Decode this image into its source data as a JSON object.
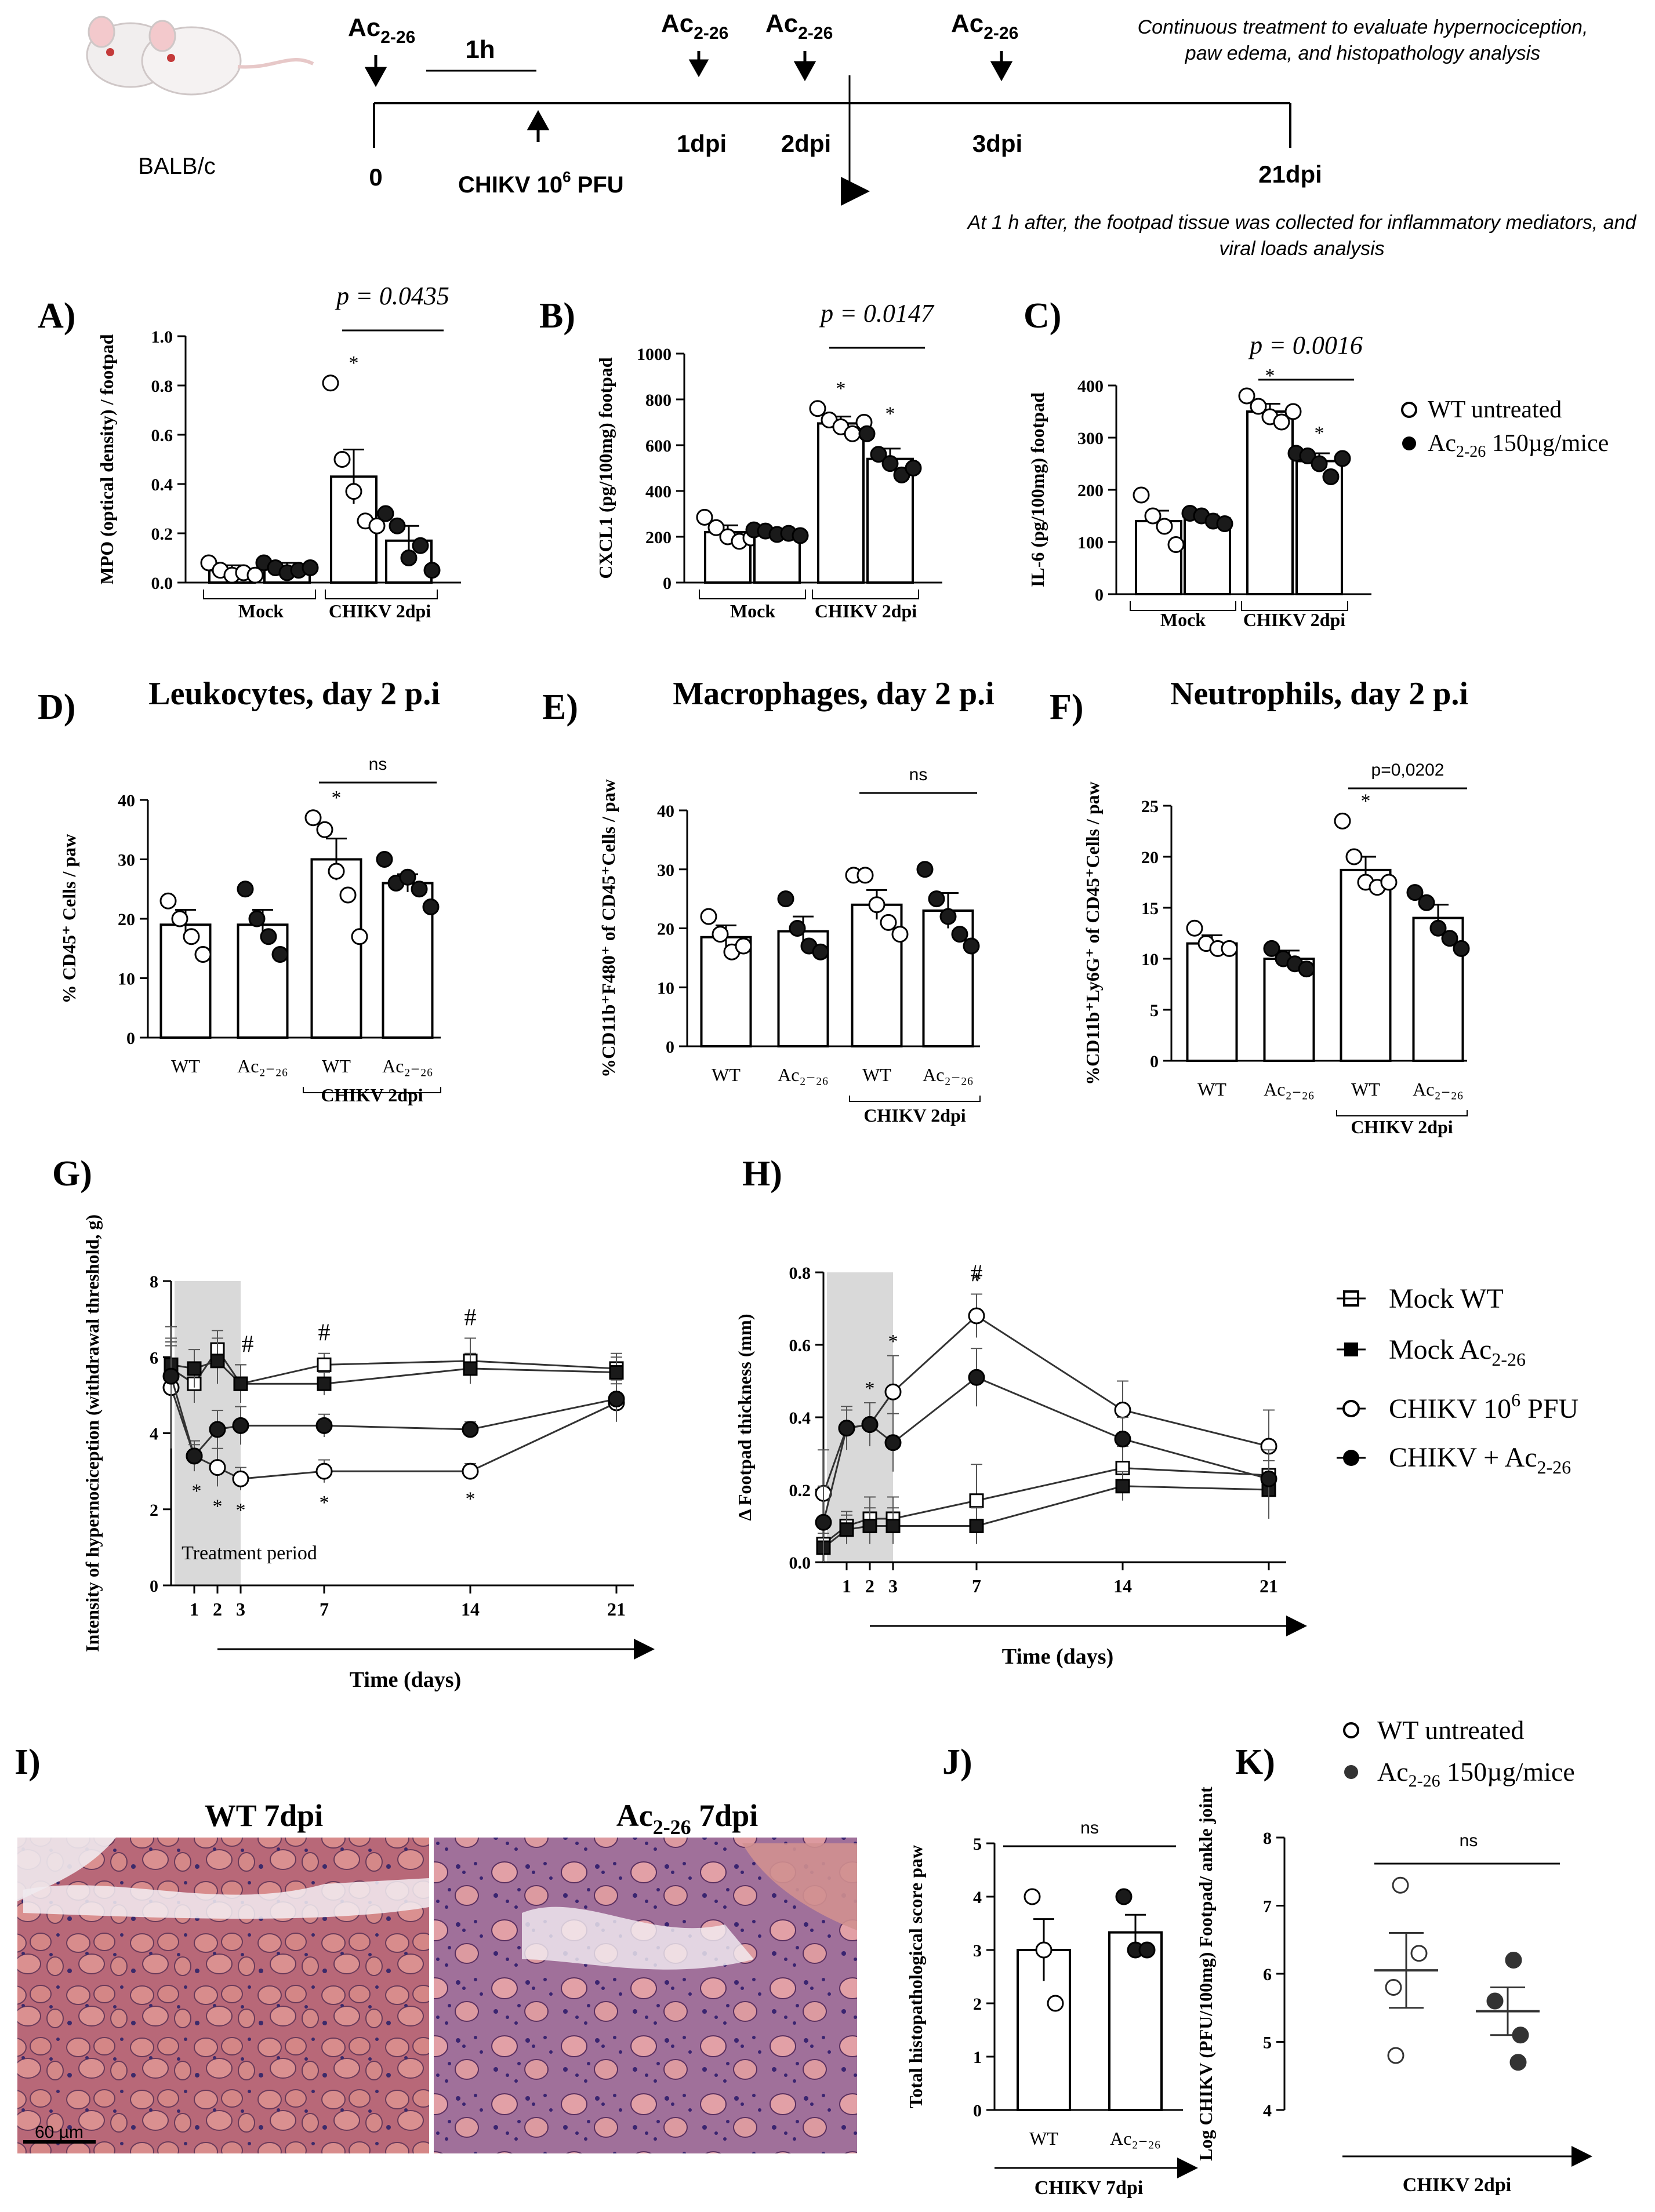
{
  "timeline": {
    "strain": "BALB/c",
    "ac": "Ac",
    "ac_sub": "2-26",
    "one_h": "1h",
    "t0": "0",
    "d1": "1dpi",
    "d2": "2dpi",
    "d3": "3dpi",
    "d21": "21dpi",
    "chikv": "CHIKV 10",
    "chikv_sup": "6",
    "chikv_unit": " PFU",
    "note1": "Continuous treatment to evaluate hypernociception,",
    "note2": "paw edema, and histopathology  analysis",
    "note3": "At 1 h after, the footpad tissue was collected for inflammatory mediators,  and",
    "note4": "viral loads analysis"
  },
  "legends": {
    "wt_untreated": "WT untreated",
    "ac_treated": "Ac",
    "ac_sub": "2-26",
    "ac_dose": " 150µg/mice",
    "mock_wt": "Mock WT",
    "mock_ac": "Mock Ac",
    "chikv_pfu": "CHIKV 10",
    "chikv_pfu_sup": "6",
    "chikv_pfu_unit": " PFU",
    "chikv_ac": "CHIKV + Ac"
  },
  "colors": {
    "filled": "#1a1a1a",
    "open": "#ffffff",
    "shade": "#d9d9d9"
  },
  "panel_labels": {
    "A": "A)",
    "B": "B)",
    "C": "C)",
    "D": "D)",
    "E": "E)",
    "F": "F)",
    "G": "G)",
    "H": "H)",
    "I": "I)",
    "J": "J)",
    "K": "K)"
  },
  "chart_data": [
    {
      "id": "A",
      "type": "bar",
      "ylabel": "MPO (optical density) / footpad",
      "yticks": [
        "0.0",
        "0.2",
        "0.4",
        "0.6",
        "0.8",
        "1.0"
      ],
      "ylim": [
        0,
        1.0
      ],
      "groups": [
        "Mock",
        "CHIKV 2dpi"
      ],
      "pvalue": "p = 0.0435",
      "bars": [
        {
          "fill": "open",
          "mean": 0.05,
          "sem": 0.02,
          "points": [
            0.08,
            0.05,
            0.03,
            0.04,
            0.03
          ]
        },
        {
          "fill": "filled",
          "mean": 0.06,
          "sem": 0.02,
          "points": [
            0.08,
            0.06,
            0.04,
            0.05,
            0.06
          ]
        },
        {
          "fill": "open",
          "mean": 0.43,
          "sem": 0.11,
          "points": [
            0.81,
            0.5,
            0.37,
            0.25,
            0.23
          ],
          "star": "*"
        },
        {
          "fill": "filled",
          "mean": 0.17,
          "sem": 0.06,
          "points": [
            0.28,
            0.23,
            0.1,
            0.15,
            0.05
          ]
        }
      ]
    },
    {
      "id": "B",
      "type": "bar",
      "ylabel": "CXCL1 (pg/100mg) footpad",
      "yticks": [
        "0",
        "200",
        "400",
        "600",
        "800",
        "1000"
      ],
      "ylim": [
        0,
        1000
      ],
      "groups": [
        "Mock",
        "CHIKV 2dpi"
      ],
      "pvalue": "p = 0.0147",
      "bars": [
        {
          "fill": "open",
          "mean": 220,
          "sem": 30,
          "points": [
            285,
            240,
            200,
            180,
            195
          ]
        },
        {
          "fill": "filled",
          "mean": 220,
          "sem": 10,
          "points": [
            230,
            225,
            210,
            215,
            205
          ]
        },
        {
          "fill": "open",
          "mean": 695,
          "sem": 30,
          "points": [
            760,
            710,
            680,
            650,
            700
          ],
          "star": "*"
        },
        {
          "fill": "filled",
          "mean": 540,
          "sem": 45,
          "points": [
            650,
            560,
            520,
            470,
            500
          ],
          "star": "*"
        }
      ]
    },
    {
      "id": "C",
      "type": "bar",
      "ylabel": "IL-6 (pg/100mg) footpad",
      "yticks": [
        "0",
        "100",
        "200",
        "300",
        "400"
      ],
      "ylim": [
        0,
        400
      ],
      "groups": [
        "Mock",
        "CHIKV 2dpi"
      ],
      "pvalue": "p = 0.0016",
      "bars": [
        {
          "fill": "open",
          "mean": 140,
          "sem": 20,
          "points": [
            190,
            150,
            130,
            95
          ]
        },
        {
          "fill": "filled",
          "mean": 145,
          "sem": 8,
          "points": [
            155,
            150,
            140,
            135
          ]
        },
        {
          "fill": "open",
          "mean": 350,
          "sem": 15,
          "points": [
            380,
            360,
            340,
            330,
            350
          ],
          "star": "*"
        },
        {
          "fill": "filled",
          "mean": 255,
          "sem": 15,
          "points": [
            270,
            265,
            250,
            225,
            260
          ],
          "star": "*"
        }
      ]
    },
    {
      "id": "D",
      "type": "bar",
      "title": "Leukocytes, day 2 p.i",
      "ylabel": "% CD45⁺ Cells / paw",
      "yticks": [
        "0",
        "10",
        "20",
        "30",
        "40"
      ],
      "ylim": [
        0,
        40
      ],
      "xlabels": [
        "WT",
        "Ac₂₋₂₆",
        "WT",
        "Ac₂₋₂₆"
      ],
      "group": "CHIKV 2dpi",
      "sig": "ns",
      "bars": [
        {
          "fill": "open",
          "mean": 19,
          "sem": 2.5,
          "points": [
            23,
            20,
            17,
            14
          ]
        },
        {
          "fill": "filled",
          "mean": 19,
          "sem": 2.5,
          "points": [
            25,
            20,
            17,
            14
          ]
        },
        {
          "fill": "open",
          "mean": 30,
          "sem": 3.5,
          "points": [
            37,
            35,
            28,
            24,
            17
          ],
          "star": "*"
        },
        {
          "fill": "filled",
          "mean": 26,
          "sem": 1.5,
          "points": [
            30,
            26,
            27,
            25,
            22
          ]
        }
      ]
    },
    {
      "id": "E",
      "type": "bar",
      "title": "Macrophages, day 2 p.i",
      "ylabel": "%CD11b⁺F480⁺ of CD45⁺Cells / paw",
      "yticks": [
        "0",
        "10",
        "20",
        "30",
        "40"
      ],
      "ylim": [
        0,
        40
      ],
      "xlabels": [
        "WT",
        "Ac₂₋₂₆",
        "WT",
        "Ac₂₋₂₆"
      ],
      "group": "CHIKV 2dpi",
      "sig": "ns",
      "bars": [
        {
          "fill": "open",
          "mean": 18.5,
          "sem": 2,
          "points": [
            22,
            19,
            16,
            17
          ]
        },
        {
          "fill": "filled",
          "mean": 19.5,
          "sem": 2.5,
          "points": [
            25,
            20,
            17,
            16
          ]
        },
        {
          "fill": "open",
          "mean": 24,
          "sem": 2.5,
          "points": [
            29,
            29,
            24,
            21,
            19
          ]
        },
        {
          "fill": "filled",
          "mean": 23,
          "sem": 3,
          "points": [
            30,
            25,
            22,
            19,
            17
          ]
        }
      ]
    },
    {
      "id": "F",
      "type": "bar",
      "title": "Neutrophils, day 2 p.i",
      "ylabel": "%CD11b⁺Ly6G⁺ of CD45⁺Cells / paw",
      "yticks": [
        "0",
        "5",
        "10",
        "15",
        "20",
        "25"
      ],
      "ylim": [
        0,
        25
      ],
      "xlabels": [
        "WT",
        "Ac₂₋₂₆",
        "WT",
        "Ac₂₋₂₆"
      ],
      "group": "CHIKV 2dpi",
      "sig": "p=0,0202",
      "bars": [
        {
          "fill": "open",
          "mean": 11.5,
          "sem": 0.8,
          "points": [
            13,
            11.5,
            11,
            11
          ]
        },
        {
          "fill": "filled",
          "mean": 10,
          "sem": 0.8,
          "points": [
            11,
            10,
            9.5,
            9
          ]
        },
        {
          "fill": "open",
          "mean": 18.7,
          "sem": 1.3,
          "points": [
            23.5,
            20,
            17.5,
            17,
            17.5
          ],
          "star": "*"
        },
        {
          "fill": "filled",
          "mean": 14,
          "sem": 1.3,
          "points": [
            16.5,
            15.5,
            13,
            12,
            11
          ]
        }
      ]
    },
    {
      "id": "G",
      "type": "line",
      "ylabel": "Intensity of hypernociception (withdrawal threshold, g)",
      "xlabel": "Time (days)",
      "xticks": [
        "1",
        "2",
        "3",
        "7",
        "14",
        "21"
      ],
      "yticks": [
        "0",
        "2",
        "4",
        "6",
        "8"
      ],
      "ylim": [
        0,
        8
      ],
      "shade_label": "Treatment period",
      "hash_days": [
        3,
        7,
        14
      ],
      "star_days": [
        1,
        2,
        3,
        7,
        14
      ],
      "x": [
        0,
        1,
        2,
        3,
        7,
        14,
        21
      ],
      "series": [
        {
          "name": "Mock WT",
          "marker": "square",
          "fill": "open",
          "y": [
            5.7,
            5.3,
            6.2,
            5.3,
            5.8,
            5.9,
            5.7
          ],
          "err": [
            0.6,
            0.5,
            0.5,
            0.5,
            0.3,
            0.6,
            0.4
          ]
        },
        {
          "name": "Mock Ac",
          "marker": "square",
          "fill": "filled",
          "y": [
            5.8,
            5.7,
            5.9,
            5.3,
            5.3,
            5.7,
            5.6
          ],
          "err": [
            0.6,
            0.5,
            0.6,
            0.5,
            0.3,
            0.4,
            0.4
          ]
        },
        {
          "name": "CHIKV 10^6 PFU",
          "marker": "circle",
          "fill": "open",
          "y": [
            5.2,
            3.4,
            3.1,
            2.8,
            3.0,
            3.0,
            4.8
          ],
          "err": [
            1.6,
            0.4,
            0.5,
            0.3,
            0.3,
            0.2,
            0.5
          ]
        },
        {
          "name": "CHIKV + Ac",
          "marker": "circle",
          "fill": "filled",
          "y": [
            5.5,
            3.4,
            4.1,
            4.2,
            4.2,
            4.1,
            4.9
          ],
          "err": [
            1.0,
            0.3,
            0.5,
            0.5,
            0.3,
            0.2,
            0.5
          ]
        }
      ]
    },
    {
      "id": "H",
      "type": "line",
      "ylabel": "Δ Footpad thickness (mm)",
      "xlabel": "Time (days)",
      "xticks": [
        "1",
        "2",
        "3",
        "7",
        "14",
        "21"
      ],
      "yticks": [
        "0.0",
        "0.2",
        "0.4",
        "0.6",
        "0.8"
      ],
      "ylim": [
        0,
        0.8
      ],
      "hash_days": [
        7
      ],
      "star_days": [
        2,
        3,
        7
      ],
      "x": [
        0,
        1,
        2,
        3,
        7,
        14,
        21
      ],
      "series": [
        {
          "name": "Mock WT",
          "marker": "square",
          "fill": "open",
          "y": [
            0.05,
            0.1,
            0.12,
            0.12,
            0.17,
            0.26,
            0.24
          ],
          "err": [
            0.05,
            0.04,
            0.06,
            0.06,
            0.1,
            0.06,
            0.09
          ]
        },
        {
          "name": "Mock Ac",
          "marker": "square",
          "fill": "filled",
          "y": [
            0.04,
            0.09,
            0.1,
            0.1,
            0.1,
            0.21,
            0.2
          ],
          "err": [
            0.04,
            0.04,
            0.05,
            0.05,
            0.05,
            0.04,
            0.08
          ]
        },
        {
          "name": "CHIKV 10^6 PFU",
          "marker": "circle",
          "fill": "open",
          "y": [
            0.19,
            0.37,
            0.38,
            0.47,
            0.68,
            0.42,
            0.32
          ],
          "err": [
            0.12,
            0.06,
            0.06,
            0.1,
            0.06,
            0.08,
            0.1
          ]
        },
        {
          "name": "CHIKV + Ac",
          "marker": "circle",
          "fill": "filled",
          "y": [
            0.11,
            0.37,
            0.38,
            0.33,
            0.51,
            0.34,
            0.23
          ],
          "err": [
            0.1,
            0.05,
            0.06,
            0.08,
            0.08,
            0.06,
            0.08
          ]
        }
      ]
    },
    {
      "id": "J",
      "type": "bar",
      "ylabel": "Total histopathological score paw",
      "yticks": [
        "0",
        "1",
        "2",
        "3",
        "4",
        "5"
      ],
      "ylim": [
        0,
        5
      ],
      "xlabels": [
        "WT",
        "Ac₂₋₂₆"
      ],
      "group": "CHIKV 7dpi",
      "sig": "ns",
      "bars": [
        {
          "fill": "open",
          "mean": 3.0,
          "sem": 0.58,
          "points": [
            4,
            3,
            2
          ]
        },
        {
          "fill": "filled",
          "mean": 3.33,
          "sem": 0.33,
          "points": [
            4,
            3,
            3
          ]
        }
      ]
    },
    {
      "id": "K",
      "type": "scatter",
      "ylabel": "Log CHIKV (PFU/100mg) Footpad/ ankle joint",
      "yticks": [
        "4",
        "5",
        "6",
        "7",
        "8"
      ],
      "ylim": [
        4,
        8
      ],
      "group": "CHIKV 2dpi",
      "sig": "ns",
      "groups_data": [
        {
          "fill": "open",
          "mean": 6.05,
          "sem": 0.55,
          "points": [
            7.3,
            6.3,
            5.8,
            4.8
          ]
        },
        {
          "fill": "filled",
          "mean": 5.45,
          "sem": 0.35,
          "points": [
            6.2,
            5.6,
            5.1,
            4.7
          ]
        }
      ]
    }
  ],
  "histology": {
    "wt_title": "WT 7dpi",
    "ac_title_main": "Ac",
    "ac_title_sub": "2-26",
    "ac_title_tail": " 7dpi",
    "scale": "60 µm"
  }
}
